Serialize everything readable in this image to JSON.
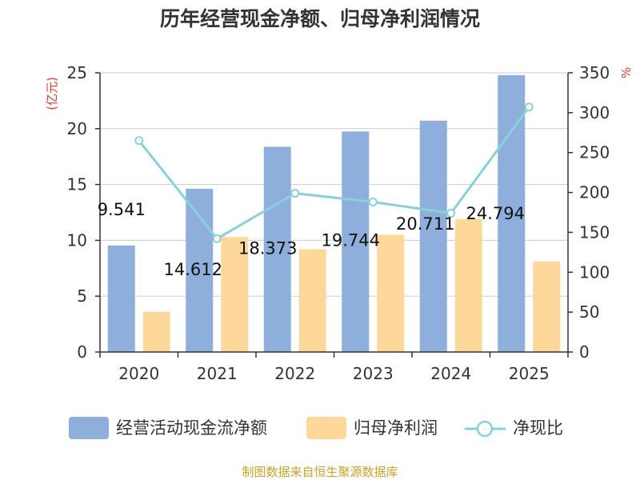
{
  "chart_data": {
    "type": "bar",
    "title": "历年经营现金净额、归母净利润情况",
    "categories": [
      "2020",
      "2021",
      "2022",
      "2023",
      "2024",
      "2025"
    ],
    "series": [
      {
        "name": "经营活动现金流净额",
        "kind": "bar",
        "axis": "left",
        "color": "#8eaedb",
        "values": [
          9.541,
          14.612,
          18.373,
          19.744,
          20.711,
          24.794
        ]
      },
      {
        "name": "归母净利润",
        "kind": "bar",
        "axis": "left",
        "color": "#fdd89a",
        "values": [
          3.6,
          10.3,
          9.2,
          10.5,
          11.9,
          8.1
        ]
      },
      {
        "name": "净现比",
        "kind": "line",
        "axis": "right",
        "color": "#87d2d8",
        "values": [
          265,
          142,
          199,
          188,
          174,
          307
        ]
      }
    ],
    "data_labels": [
      "9.541",
      "14.612",
      "18.373",
      "19.744",
      "20.711",
      "24.794"
    ],
    "y_left": {
      "label": "(亿元)",
      "ylim": [
        0,
        25
      ],
      "ticks": [
        0,
        5,
        10,
        15,
        20,
        25
      ]
    },
    "y_right": {
      "label": "%",
      "ylim": [
        0,
        350
      ],
      "ticks": [
        0,
        50,
        100,
        150,
        200,
        250,
        300,
        350
      ]
    },
    "grid": true,
    "legend_position": "bottom"
  },
  "source": "制图数据来自恒生聚源数据库"
}
